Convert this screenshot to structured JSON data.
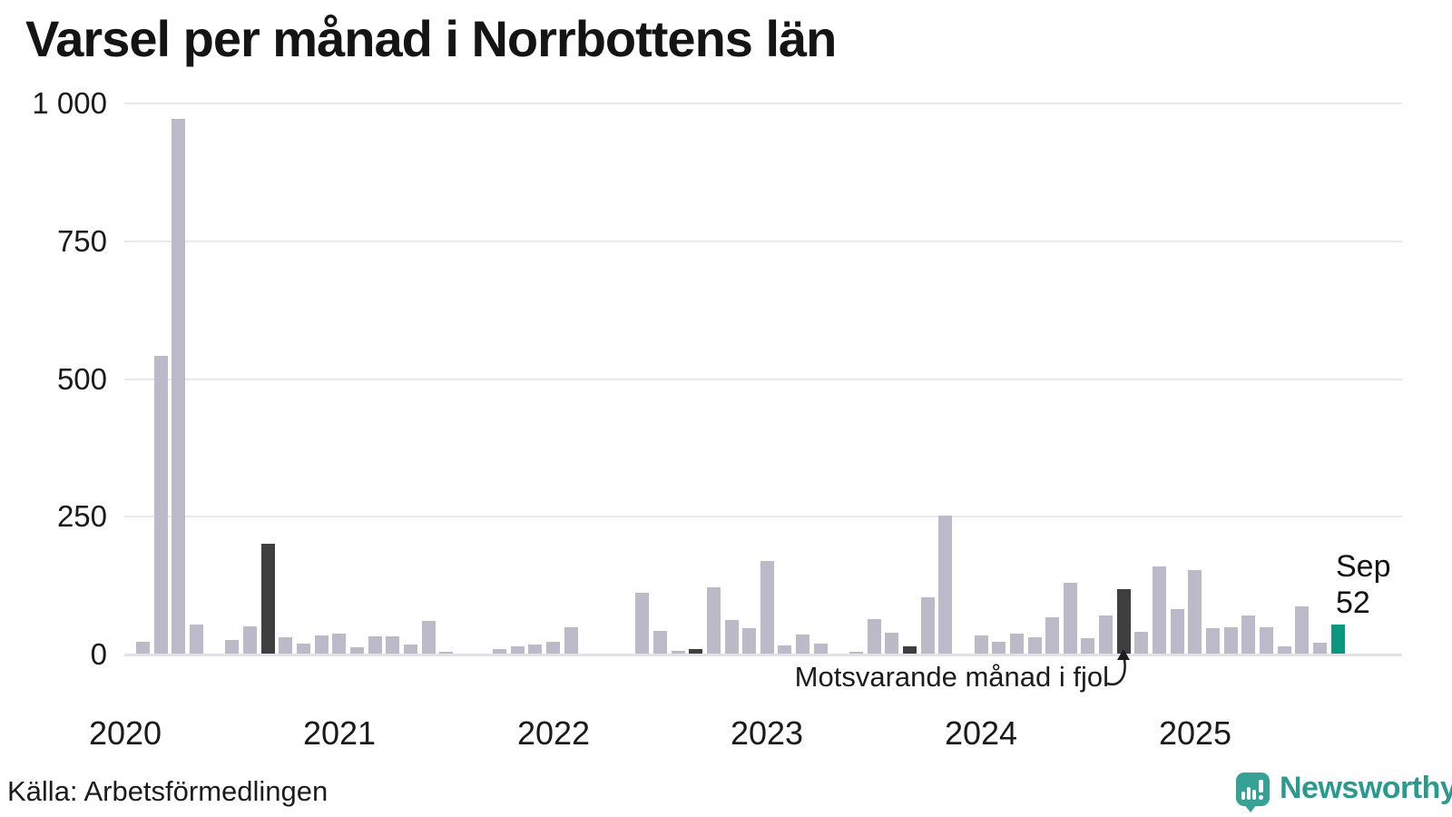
{
  "title": "Varsel per månad i Norrbottens län",
  "source": "Källa: Arbetsförmedlingen",
  "logo": {
    "text": "Newsworthy"
  },
  "annotation": {
    "text": "Motsvarande månad i fjol",
    "target_month": "2024-09"
  },
  "current_label": {
    "line1": "Sep",
    "line2": "52"
  },
  "colors": {
    "bar_default": "#bcb9c9",
    "bar_last_year_month": "#3f3f3f",
    "bar_current": "#0d9680",
    "grid": "#e9e8ee",
    "axis_text": "#1a1a1a",
    "logo_teal": "#2b9a8e"
  },
  "chart_data": {
    "type": "bar",
    "title": "Varsel per månad i Norrbottens län",
    "xlabel": "",
    "ylabel": "",
    "ylim": [
      0,
      1000
    ],
    "y_ticks": [
      0,
      250,
      500,
      750,
      1000
    ],
    "y_tick_labels": [
      "0",
      "250",
      "500",
      "750",
      "1 000"
    ],
    "x_year_labels": [
      "2020",
      "2021",
      "2022",
      "2023",
      "2024",
      "2025"
    ],
    "grid": "horizontal",
    "legend": "none",
    "highlight_rule": "september-each-year-dark, current-month-teal",
    "months": [
      {
        "m": "2020-01",
        "v": 0
      },
      {
        "m": "2020-02",
        "v": 22
      },
      {
        "m": "2020-03",
        "v": 540
      },
      {
        "m": "2020-04",
        "v": 970
      },
      {
        "m": "2020-05",
        "v": 53
      },
      {
        "m": "2020-06",
        "v": 0
      },
      {
        "m": "2020-07",
        "v": 25
      },
      {
        "m": "2020-08",
        "v": 50
      },
      {
        "m": "2020-09",
        "v": 200,
        "k": "sep"
      },
      {
        "m": "2020-10",
        "v": 29
      },
      {
        "m": "2020-11",
        "v": 18
      },
      {
        "m": "2020-12",
        "v": 33
      },
      {
        "m": "2021-01",
        "v": 37
      },
      {
        "m": "2021-02",
        "v": 12
      },
      {
        "m": "2021-03",
        "v": 32
      },
      {
        "m": "2021-04",
        "v": 32
      },
      {
        "m": "2021-05",
        "v": 17
      },
      {
        "m": "2021-06",
        "v": 59
      },
      {
        "m": "2021-07",
        "v": 4
      },
      {
        "m": "2021-08",
        "v": 0
      },
      {
        "m": "2021-09",
        "v": 0,
        "k": "sep"
      },
      {
        "m": "2021-10",
        "v": 8
      },
      {
        "m": "2021-11",
        "v": 13
      },
      {
        "m": "2021-12",
        "v": 17
      },
      {
        "m": "2022-01",
        "v": 22
      },
      {
        "m": "2022-02",
        "v": 48
      },
      {
        "m": "2022-03",
        "v": 0
      },
      {
        "m": "2022-04",
        "v": 0
      },
      {
        "m": "2022-05",
        "v": 0
      },
      {
        "m": "2022-06",
        "v": 111
      },
      {
        "m": "2022-07",
        "v": 41
      },
      {
        "m": "2022-08",
        "v": 5
      },
      {
        "m": "2022-09",
        "v": 9,
        "k": "sep"
      },
      {
        "m": "2022-10",
        "v": 120
      },
      {
        "m": "2022-11",
        "v": 61
      },
      {
        "m": "2022-12",
        "v": 46
      },
      {
        "m": "2023-01",
        "v": 168
      },
      {
        "m": "2023-02",
        "v": 15
      },
      {
        "m": "2023-03",
        "v": 35
      },
      {
        "m": "2023-04",
        "v": 18
      },
      {
        "m": "2023-05",
        "v": 0
      },
      {
        "m": "2023-06",
        "v": 4
      },
      {
        "m": "2023-07",
        "v": 62
      },
      {
        "m": "2023-08",
        "v": 38
      },
      {
        "m": "2023-09",
        "v": 14,
        "k": "sep"
      },
      {
        "m": "2023-10",
        "v": 102
      },
      {
        "m": "2023-11",
        "v": 250
      },
      {
        "m": "2023-12",
        "v": 0
      },
      {
        "m": "2024-01",
        "v": 33
      },
      {
        "m": "2024-02",
        "v": 22
      },
      {
        "m": "2024-03",
        "v": 36
      },
      {
        "m": "2024-04",
        "v": 30
      },
      {
        "m": "2024-05",
        "v": 66
      },
      {
        "m": "2024-06",
        "v": 128
      },
      {
        "m": "2024-07",
        "v": 28
      },
      {
        "m": "2024-08",
        "v": 70
      },
      {
        "m": "2024-09",
        "v": 117,
        "k": "sep"
      },
      {
        "m": "2024-10",
        "v": 40
      },
      {
        "m": "2024-11",
        "v": 158
      },
      {
        "m": "2024-12",
        "v": 81
      },
      {
        "m": "2025-01",
        "v": 152
      },
      {
        "m": "2025-02",
        "v": 46
      },
      {
        "m": "2025-03",
        "v": 48
      },
      {
        "m": "2025-04",
        "v": 69
      },
      {
        "m": "2025-05",
        "v": 47
      },
      {
        "m": "2025-06",
        "v": 13
      },
      {
        "m": "2025-07",
        "v": 85
      },
      {
        "m": "2025-08",
        "v": 20
      },
      {
        "m": "2025-09",
        "v": 52,
        "k": "current"
      }
    ]
  }
}
